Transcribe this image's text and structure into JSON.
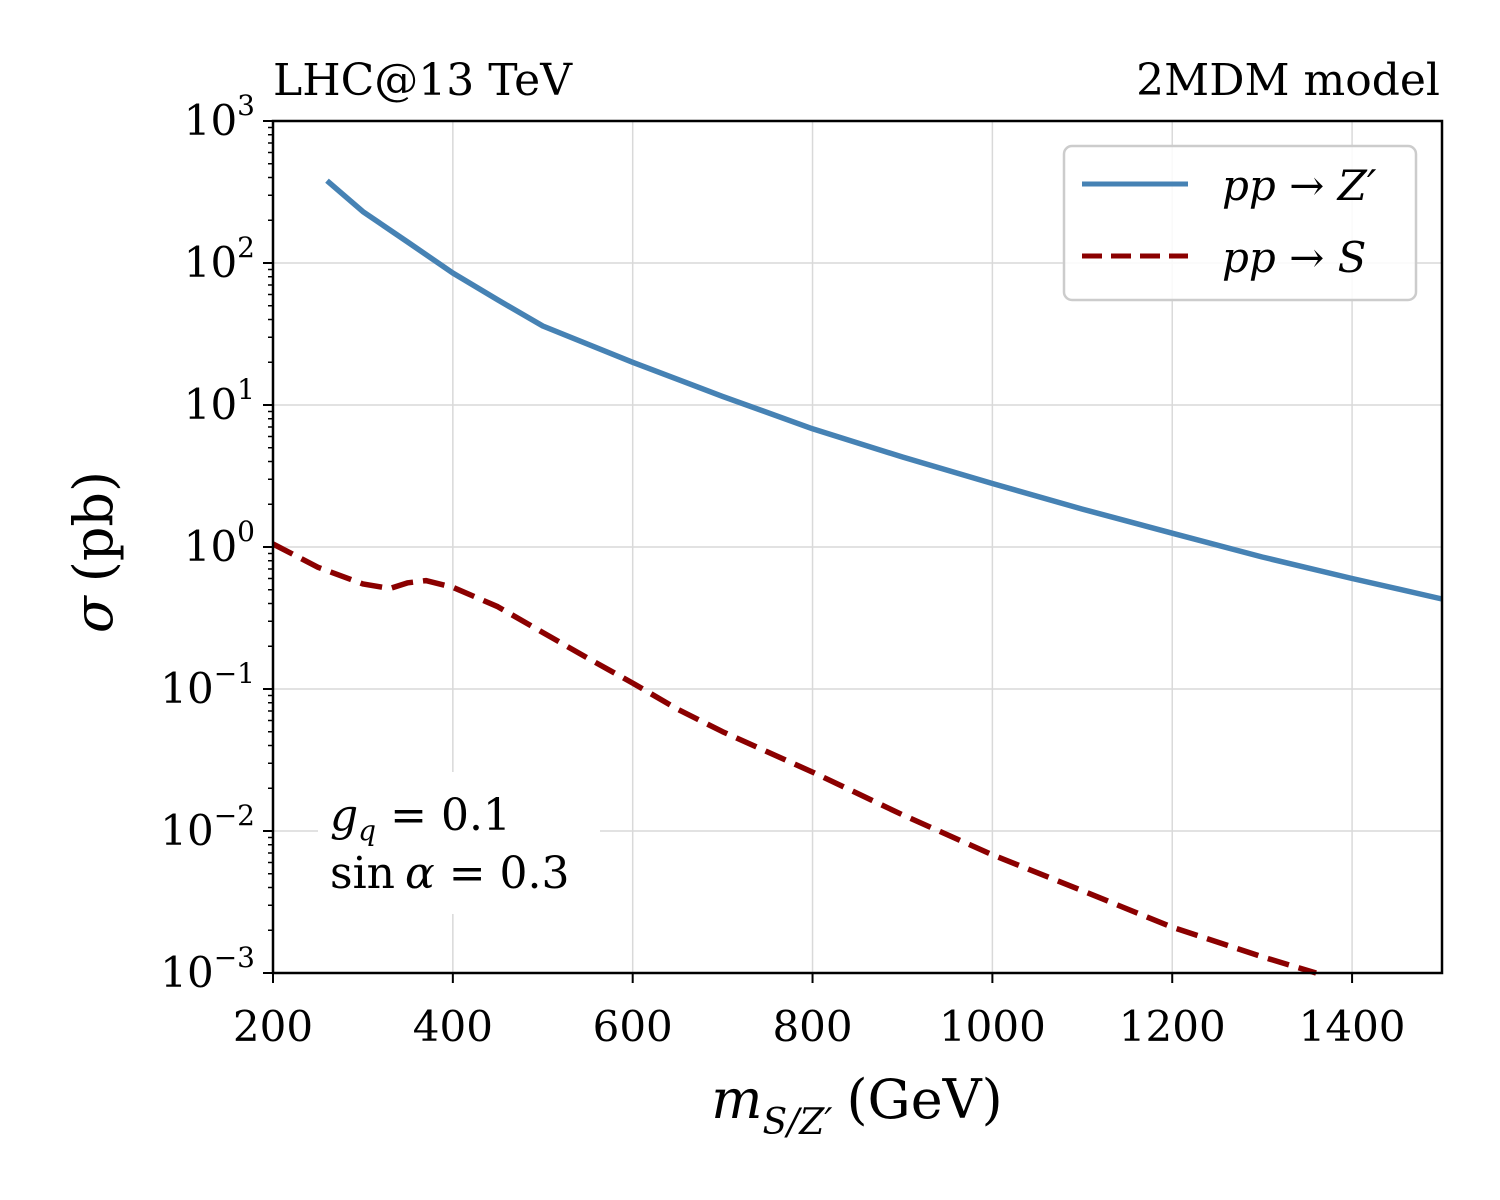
{
  "chart_data": {
    "type": "line",
    "title_left": "LHC@13 TeV",
    "title_right": "2MDM model",
    "xlabel": "m",
    "xlabel_sub": "S/Z′",
    "xlabel_unit": "(GeV)",
    "ylabel_symbol": "σ",
    "ylabel_unit": "(pb)",
    "xlim": [
      200,
      1500
    ],
    "ylim": [
      0.001,
      1000
    ],
    "yscale": "log",
    "grid": true,
    "x_ticks": [
      200,
      400,
      600,
      800,
      1000,
      1200,
      1400
    ],
    "y_ticks": [
      {
        "value": 1000,
        "base": "10",
        "exp": "3"
      },
      {
        "value": 100,
        "base": "10",
        "exp": "2"
      },
      {
        "value": 10,
        "base": "10",
        "exp": "1"
      },
      {
        "value": 1,
        "base": "10",
        "exp": "0"
      },
      {
        "value": 0.1,
        "base": "10",
        "exp": "−1"
      },
      {
        "value": 0.01,
        "base": "10",
        "exp": "−2"
      },
      {
        "value": 0.001,
        "base": "10",
        "exp": "−3"
      }
    ],
    "legend_position": "top-right",
    "series": [
      {
        "name": "pp → Z′",
        "style": "solid",
        "color": "#4682b4",
        "x": [
          260,
          300,
          350,
          400,
          450,
          500,
          600,
          700,
          800,
          900,
          1000,
          1100,
          1200,
          1300,
          1400,
          1500
        ],
        "y": [
          380,
          230,
          140,
          85,
          55,
          36,
          20,
          11.5,
          6.8,
          4.3,
          2.8,
          1.85,
          1.25,
          0.85,
          0.6,
          0.43
        ]
      },
      {
        "name": "pp → S",
        "style": "dashed",
        "color": "#8b0000",
        "x": [
          200,
          250,
          300,
          330,
          350,
          370,
          400,
          450,
          500,
          550,
          600,
          650,
          700,
          800,
          900,
          1000,
          1100,
          1200,
          1300,
          1360
        ],
        "y": [
          1.05,
          0.72,
          0.55,
          0.51,
          0.56,
          0.58,
          0.52,
          0.38,
          0.25,
          0.165,
          0.11,
          0.072,
          0.05,
          0.026,
          0.013,
          0.0068,
          0.0038,
          0.0021,
          0.0013,
          0.001
        ]
      }
    ],
    "annotation": {
      "line1_var": "g",
      "line1_sub": "q",
      "line1_rest": " = 0.1",
      "line2_func": "sin",
      "line2_var": "α",
      "line2_rest": " = 0.3"
    }
  }
}
